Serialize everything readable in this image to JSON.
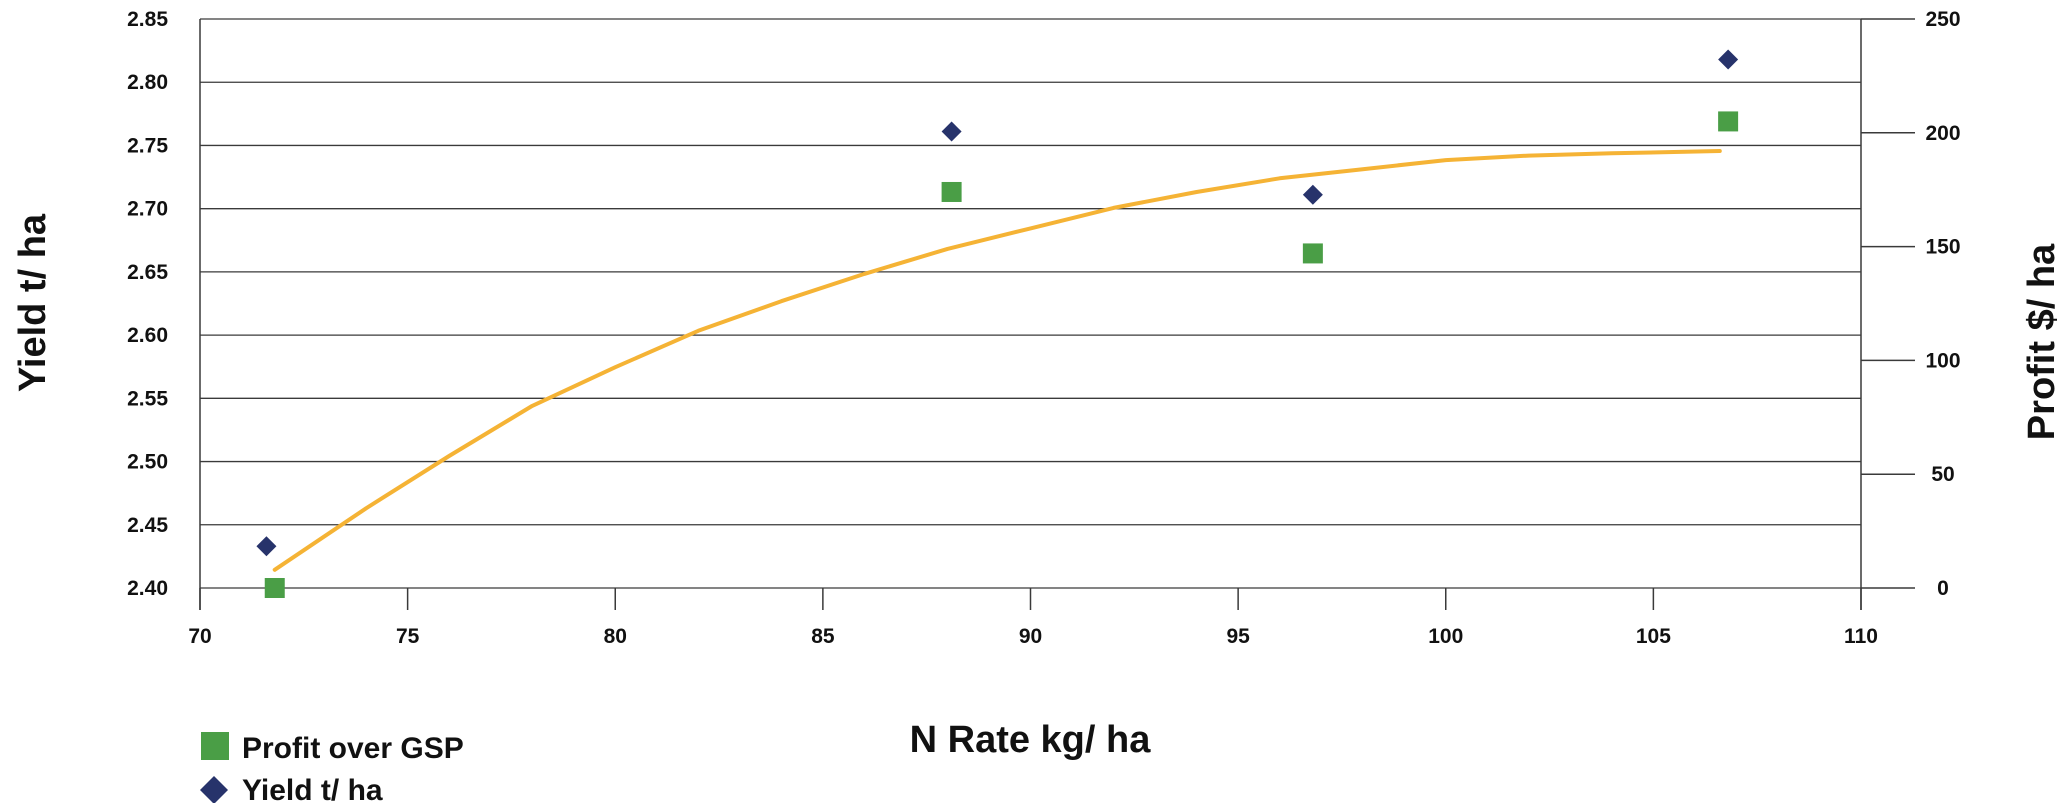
{
  "chart_data": {
    "type": "scatter",
    "xlabel": "N Rate kg/ ha",
    "ylabel_left": "Yield t/ ha",
    "ylabel_right": "Profit $/ ha",
    "xlim": [
      70,
      110
    ],
    "xticks": [
      "70",
      "75",
      "80",
      "85",
      "90",
      "95",
      "100",
      "105",
      "110"
    ],
    "ylim_left": [
      2.4,
      2.85
    ],
    "yticks_left": [
      "2.40",
      "2.45",
      "2.50",
      "2.55",
      "2.60",
      "2.65",
      "2.70",
      "2.75",
      "2.80",
      "2.85"
    ],
    "ylim_right": [
      0,
      250
    ],
    "yticks_right": [
      "0",
      "50",
      "100",
      "150",
      "200",
      "250"
    ],
    "grid": true,
    "legend_position": "bottom-left",
    "series": [
      {
        "name": "Profit over GSP",
        "axis": "right",
        "marker": "square",
        "color": "#4a9e46",
        "x": [
          71.8,
          88.1,
          96.8,
          106.8
        ],
        "y": [
          0,
          174,
          147,
          205
        ]
      },
      {
        "name": "Yield t/ ha",
        "axis": "left",
        "marker": "diamond",
        "color": "#27336b",
        "x": [
          71.6,
          88.1,
          96.8,
          106.8
        ],
        "y": [
          2.433,
          2.761,
          2.711,
          2.818
        ]
      }
    ],
    "trendline": {
      "axis": "right",
      "color": "#f5b335",
      "x": [
        71.8,
        74,
        76,
        78,
        80,
        82,
        84,
        86,
        88,
        90,
        92,
        94,
        96,
        98,
        100,
        102,
        104,
        106.6
      ],
      "y": [
        8,
        35,
        58,
        80,
        97,
        113,
        126,
        138,
        149,
        158,
        167,
        174,
        180,
        184,
        188,
        190,
        191,
        192
      ]
    }
  }
}
